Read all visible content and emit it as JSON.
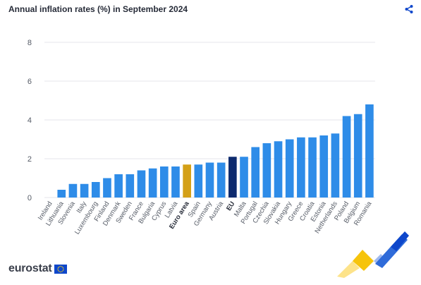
{
  "header": {
    "title": "Annual inflation rates (%) in September 2024",
    "share_icon": "share-icon"
  },
  "branding": {
    "logo_text": "eurostat",
    "flag_icon": "eu-flag-icon"
  },
  "colors": {
    "bar": "#2e8ce8",
    "euro_area": "#d4a017",
    "eu": "#0d2a6e",
    "grid": "#e4e6eb",
    "axis_text": "#555b66"
  },
  "chart_data": {
    "type": "bar",
    "title": "Annual inflation rates (%) in September 2024",
    "xlabel": "",
    "ylabel": "",
    "ylim": [
      0,
      8
    ],
    "yticks": [
      0,
      2,
      4,
      6,
      8
    ],
    "grid": true,
    "categories": [
      "Ireland",
      "Lithuania",
      "Slovenia",
      "Italy",
      "Luxembourg",
      "Finland",
      "Denmark",
      "Sweden",
      "France",
      "Bulgaria",
      "Cyprus",
      "Latvia",
      "Euro area",
      "Spain",
      "Germany",
      "Austria",
      "EU",
      "Malta",
      "Portugal",
      "Czechia",
      "Slovakia",
      "Hungary",
      "Greece",
      "Croatia",
      "Estonia",
      "Netherlands",
      "Poland",
      "Belgium",
      "Romania"
    ],
    "values": [
      0.0,
      0.4,
      0.7,
      0.7,
      0.8,
      1.0,
      1.2,
      1.2,
      1.4,
      1.5,
      1.6,
      1.6,
      1.7,
      1.7,
      1.8,
      1.8,
      2.1,
      2.1,
      2.6,
      2.8,
      2.9,
      3.0,
      3.1,
      3.1,
      3.2,
      3.3,
      4.2,
      4.3,
      4.8
    ],
    "highlight": {
      "Euro area": "euro_area",
      "EU": "eu"
    }
  }
}
